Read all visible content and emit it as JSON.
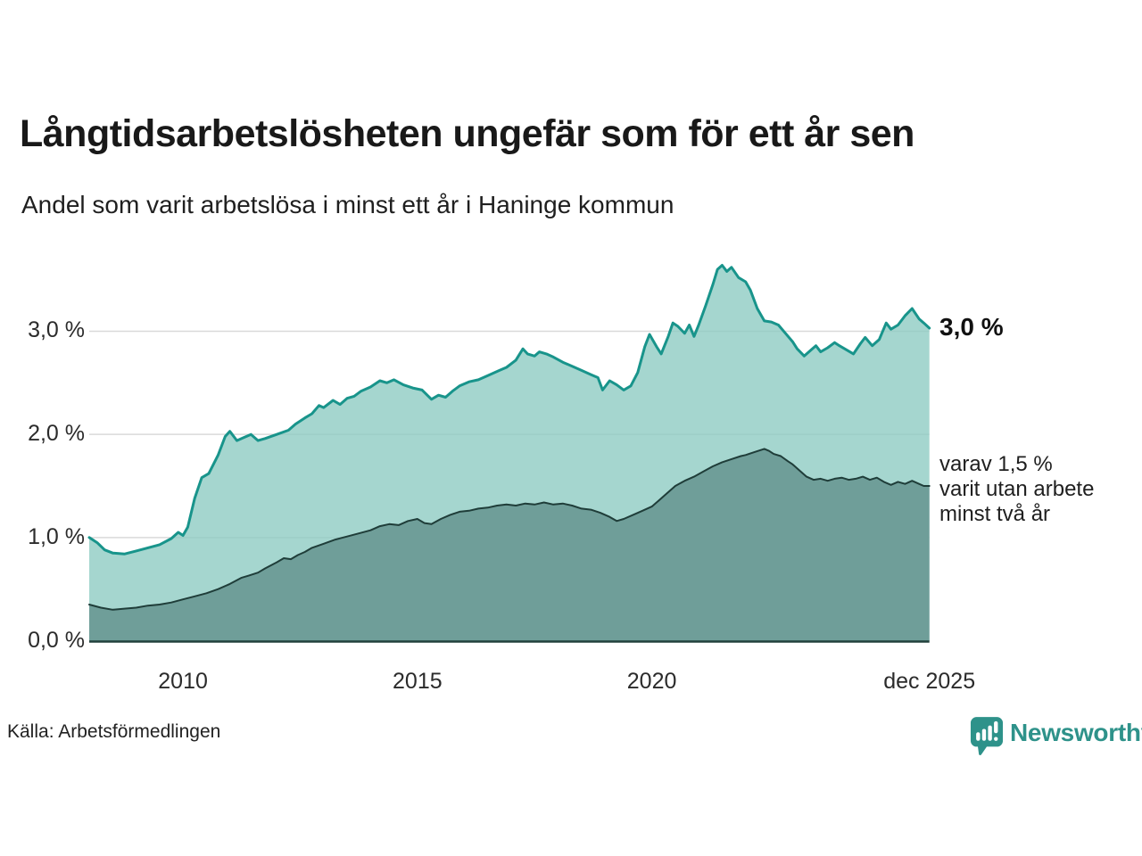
{
  "header": {
    "title": "Långtidsarbetslösheten ungefär som för ett år sen",
    "subtitle": "Andel som varit arbetslösa i minst ett år i Haninge kommun"
  },
  "footer": {
    "source": "Källa: Arbetsförmedlingen",
    "logo_text": "Newsworthy",
    "logo_icon": "bar-chart-speech-bubble-icon"
  },
  "colors": {
    "accent_teal": "#18948b",
    "area_light": "#a6d5cf",
    "area_dark": "#6f9e99",
    "dark_line": "#1f3d39",
    "gridline": "#d9d9d9",
    "axis_line": "#21403c",
    "text": "#1a1a1a",
    "logo_teal": "#2e928a"
  },
  "chart_data": {
    "type": "area",
    "title": "Långtidsarbetslösheten ungefär som för ett år sen",
    "subtitle": "Andel som varit arbetslösa i minst ett år i Haninge kommun",
    "source": "Källa: Arbetsförmedlingen",
    "unit": "%",
    "grid": true,
    "xlim": [
      2008.0,
      2025.92
    ],
    "ylim": [
      0,
      3.7
    ],
    "x_ticks": [
      {
        "t": 2010,
        "label": "2010"
      },
      {
        "t": 2015,
        "label": "2015"
      },
      {
        "t": 2020,
        "label": "2020"
      },
      {
        "t": 2025.92,
        "label": "dec 2025"
      }
    ],
    "y_ticks": [
      {
        "v": 0,
        "label": "0,0 %"
      },
      {
        "v": 1,
        "label": "1,0 %"
      },
      {
        "v": 2,
        "label": "2,0 %"
      },
      {
        "v": 3,
        "label": "3,0 %"
      }
    ],
    "annotations": {
      "total": {
        "text": "3,0 %",
        "value": 3.03
      },
      "two_years": {
        "lines": [
          "varav 1,5 %",
          "varit utan arbete",
          "minst två år"
        ],
        "value": 1.5
      }
    },
    "series": [
      {
        "name": "Andel arbetslösa minst ett år",
        "stroke": "#18948b",
        "fill": "#8ccac1",
        "fill_opacity": 0.78,
        "stroke_width": 3,
        "points": [
          [
            2008.0,
            1.0
          ],
          [
            2008.17,
            0.95
          ],
          [
            2008.33,
            0.88
          ],
          [
            2008.5,
            0.85
          ],
          [
            2008.75,
            0.84
          ],
          [
            2009.0,
            0.87
          ],
          [
            2009.25,
            0.9
          ],
          [
            2009.5,
            0.93
          ],
          [
            2009.75,
            0.99
          ],
          [
            2009.9,
            1.05
          ],
          [
            2010.0,
            1.02
          ],
          [
            2010.1,
            1.1
          ],
          [
            2010.25,
            1.38
          ],
          [
            2010.4,
            1.58
          ],
          [
            2010.55,
            1.62
          ],
          [
            2010.75,
            1.8
          ],
          [
            2010.9,
            1.98
          ],
          [
            2011.0,
            2.03
          ],
          [
            2011.15,
            1.94
          ],
          [
            2011.3,
            1.97
          ],
          [
            2011.45,
            2.0
          ],
          [
            2011.6,
            1.94
          ],
          [
            2011.75,
            1.96
          ],
          [
            2012.0,
            2.0
          ],
          [
            2012.25,
            2.04
          ],
          [
            2012.4,
            2.1
          ],
          [
            2012.6,
            2.16
          ],
          [
            2012.75,
            2.2
          ],
          [
            2012.9,
            2.28
          ],
          [
            2013.0,
            2.26
          ],
          [
            2013.2,
            2.33
          ],
          [
            2013.35,
            2.29
          ],
          [
            2013.5,
            2.35
          ],
          [
            2013.65,
            2.37
          ],
          [
            2013.8,
            2.42
          ],
          [
            2014.0,
            2.46
          ],
          [
            2014.2,
            2.52
          ],
          [
            2014.35,
            2.5
          ],
          [
            2014.5,
            2.53
          ],
          [
            2014.7,
            2.48
          ],
          [
            2014.9,
            2.45
          ],
          [
            2015.1,
            2.43
          ],
          [
            2015.3,
            2.34
          ],
          [
            2015.45,
            2.38
          ],
          [
            2015.6,
            2.36
          ],
          [
            2015.75,
            2.42
          ],
          [
            2015.9,
            2.47
          ],
          [
            2016.1,
            2.51
          ],
          [
            2016.3,
            2.53
          ],
          [
            2016.5,
            2.57
          ],
          [
            2016.75,
            2.62
          ],
          [
            2016.9,
            2.65
          ],
          [
            2017.1,
            2.72
          ],
          [
            2017.25,
            2.83
          ],
          [
            2017.35,
            2.78
          ],
          [
            2017.5,
            2.76
          ],
          [
            2017.6,
            2.8
          ],
          [
            2017.75,
            2.78
          ],
          [
            2017.9,
            2.75
          ],
          [
            2018.1,
            2.7
          ],
          [
            2018.3,
            2.66
          ],
          [
            2018.5,
            2.62
          ],
          [
            2018.7,
            2.58
          ],
          [
            2018.85,
            2.55
          ],
          [
            2018.95,
            2.43
          ],
          [
            2019.1,
            2.52
          ],
          [
            2019.25,
            2.48
          ],
          [
            2019.4,
            2.43
          ],
          [
            2019.55,
            2.47
          ],
          [
            2019.7,
            2.6
          ],
          [
            2019.85,
            2.85
          ],
          [
            2019.95,
            2.97
          ],
          [
            2020.1,
            2.85
          ],
          [
            2020.2,
            2.78
          ],
          [
            2020.35,
            2.95
          ],
          [
            2020.45,
            3.08
          ],
          [
            2020.55,
            3.05
          ],
          [
            2020.7,
            2.98
          ],
          [
            2020.8,
            3.06
          ],
          [
            2020.9,
            2.95
          ],
          [
            2021.0,
            3.06
          ],
          [
            2021.15,
            3.25
          ],
          [
            2021.3,
            3.45
          ],
          [
            2021.4,
            3.6
          ],
          [
            2021.5,
            3.64
          ],
          [
            2021.6,
            3.58
          ],
          [
            2021.7,
            3.62
          ],
          [
            2021.85,
            3.52
          ],
          [
            2022.0,
            3.48
          ],
          [
            2022.1,
            3.4
          ],
          [
            2022.25,
            3.22
          ],
          [
            2022.4,
            3.1
          ],
          [
            2022.55,
            3.09
          ],
          [
            2022.7,
            3.06
          ],
          [
            2022.85,
            2.98
          ],
          [
            2023.0,
            2.9
          ],
          [
            2023.1,
            2.83
          ],
          [
            2023.25,
            2.76
          ],
          [
            2023.4,
            2.82
          ],
          [
            2023.5,
            2.86
          ],
          [
            2023.6,
            2.8
          ],
          [
            2023.75,
            2.84
          ],
          [
            2023.9,
            2.89
          ],
          [
            2024.0,
            2.86
          ],
          [
            2024.15,
            2.82
          ],
          [
            2024.3,
            2.78
          ],
          [
            2024.45,
            2.88
          ],
          [
            2024.55,
            2.94
          ],
          [
            2024.7,
            2.86
          ],
          [
            2024.85,
            2.92
          ],
          [
            2025.0,
            3.08
          ],
          [
            2025.1,
            3.02
          ],
          [
            2025.25,
            3.06
          ],
          [
            2025.4,
            3.15
          ],
          [
            2025.55,
            3.22
          ],
          [
            2025.7,
            3.12
          ],
          [
            2025.8,
            3.08
          ],
          [
            2025.92,
            3.03
          ]
        ]
      },
      {
        "name": "Varav utan arbete minst två år",
        "stroke": "#1f3d39",
        "fill": "#6f9e99",
        "fill_opacity": 1,
        "stroke_width": 2,
        "points": [
          [
            2008.0,
            0.35
          ],
          [
            2008.25,
            0.32
          ],
          [
            2008.5,
            0.3
          ],
          [
            2008.75,
            0.31
          ],
          [
            2009.0,
            0.32
          ],
          [
            2009.25,
            0.34
          ],
          [
            2009.5,
            0.35
          ],
          [
            2009.75,
            0.37
          ],
          [
            2010.0,
            0.4
          ],
          [
            2010.25,
            0.43
          ],
          [
            2010.5,
            0.46
          ],
          [
            2010.75,
            0.5
          ],
          [
            2011.0,
            0.55
          ],
          [
            2011.25,
            0.61
          ],
          [
            2011.4,
            0.63
          ],
          [
            2011.6,
            0.66
          ],
          [
            2011.75,
            0.7
          ],
          [
            2012.0,
            0.76
          ],
          [
            2012.15,
            0.8
          ],
          [
            2012.3,
            0.79
          ],
          [
            2012.45,
            0.83
          ],
          [
            2012.6,
            0.86
          ],
          [
            2012.75,
            0.9
          ],
          [
            2013.0,
            0.94
          ],
          [
            2013.25,
            0.98
          ],
          [
            2013.5,
            1.01
          ],
          [
            2013.75,
            1.04
          ],
          [
            2014.0,
            1.07
          ],
          [
            2014.2,
            1.11
          ],
          [
            2014.4,
            1.13
          ],
          [
            2014.6,
            1.12
          ],
          [
            2014.8,
            1.16
          ],
          [
            2015.0,
            1.18
          ],
          [
            2015.15,
            1.14
          ],
          [
            2015.3,
            1.13
          ],
          [
            2015.5,
            1.18
          ],
          [
            2015.7,
            1.22
          ],
          [
            2015.9,
            1.25
          ],
          [
            2016.1,
            1.26
          ],
          [
            2016.3,
            1.28
          ],
          [
            2016.5,
            1.29
          ],
          [
            2016.7,
            1.31
          ],
          [
            2016.9,
            1.32
          ],
          [
            2017.1,
            1.31
          ],
          [
            2017.3,
            1.33
          ],
          [
            2017.5,
            1.32
          ],
          [
            2017.7,
            1.34
          ],
          [
            2017.9,
            1.32
          ],
          [
            2018.1,
            1.33
          ],
          [
            2018.3,
            1.31
          ],
          [
            2018.5,
            1.28
          ],
          [
            2018.7,
            1.27
          ],
          [
            2018.9,
            1.24
          ],
          [
            2019.1,
            1.2
          ],
          [
            2019.25,
            1.16
          ],
          [
            2019.4,
            1.18
          ],
          [
            2019.6,
            1.22
          ],
          [
            2019.8,
            1.26
          ],
          [
            2020.0,
            1.3
          ],
          [
            2020.15,
            1.36
          ],
          [
            2020.3,
            1.42
          ],
          [
            2020.5,
            1.5
          ],
          [
            2020.7,
            1.55
          ],
          [
            2020.9,
            1.59
          ],
          [
            2021.1,
            1.64
          ],
          [
            2021.3,
            1.69
          ],
          [
            2021.5,
            1.73
          ],
          [
            2021.7,
            1.76
          ],
          [
            2021.9,
            1.79
          ],
          [
            2022.0,
            1.8
          ],
          [
            2022.2,
            1.83
          ],
          [
            2022.4,
            1.86
          ],
          [
            2022.5,
            1.84
          ],
          [
            2022.6,
            1.81
          ],
          [
            2022.75,
            1.79
          ],
          [
            2022.9,
            1.74
          ],
          [
            2023.0,
            1.71
          ],
          [
            2023.15,
            1.65
          ],
          [
            2023.3,
            1.59
          ],
          [
            2023.45,
            1.56
          ],
          [
            2023.6,
            1.57
          ],
          [
            2023.75,
            1.55
          ],
          [
            2023.9,
            1.57
          ],
          [
            2024.05,
            1.58
          ],
          [
            2024.2,
            1.56
          ],
          [
            2024.35,
            1.57
          ],
          [
            2024.5,
            1.59
          ],
          [
            2024.65,
            1.56
          ],
          [
            2024.8,
            1.58
          ],
          [
            2024.95,
            1.54
          ],
          [
            2025.1,
            1.51
          ],
          [
            2025.25,
            1.54
          ],
          [
            2025.4,
            1.52
          ],
          [
            2025.55,
            1.55
          ],
          [
            2025.7,
            1.52
          ],
          [
            2025.8,
            1.5
          ],
          [
            2025.92,
            1.5
          ]
        ]
      }
    ]
  }
}
